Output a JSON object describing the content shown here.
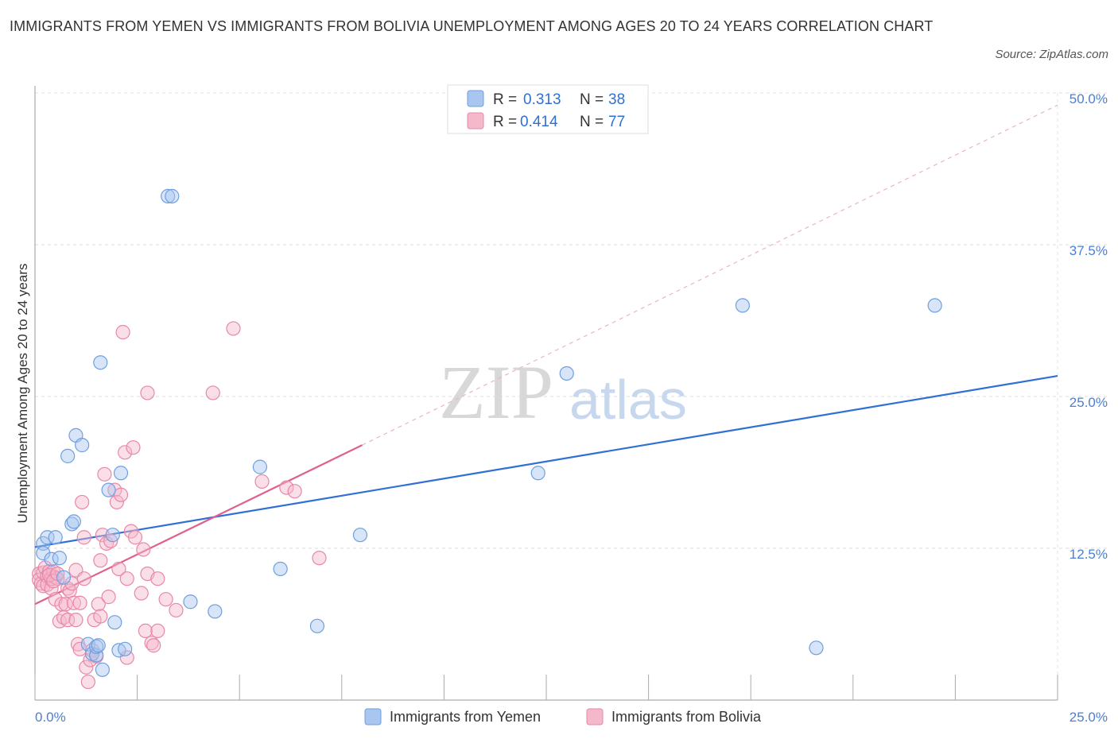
{
  "title": "IMMIGRANTS FROM YEMEN VS IMMIGRANTS FROM BOLIVIA UNEMPLOYMENT AMONG AGES 20 TO 24 YEARS CORRELATION CHART",
  "source": "Source: ZipAtlas.com",
  "watermark": {
    "zip": "ZIP",
    "atlas": "atlas"
  },
  "chart_data": {
    "type": "scatter",
    "title": "IMMIGRANTS FROM YEMEN VS IMMIGRANTS FROM BOLIVIA UNEMPLOYMENT AMONG AGES 20 TO 24 YEARS CORRELATION CHART",
    "xlabel": "",
    "ylabel": "Unemployment Among Ages 20 to 24 years",
    "xlim": [
      0,
      25
    ],
    "ylim": [
      0,
      50
    ],
    "x_tick_labels": [
      "0.0%",
      "25.0%"
    ],
    "y_tick_labels": [
      "12.5%",
      "25.0%",
      "37.5%",
      "50.0%"
    ],
    "y_ticks": [
      12.5,
      25,
      37.5,
      50
    ],
    "grid": true,
    "legend_position": "top-center",
    "legend": [
      {
        "series": "Immigrants from Yemen",
        "r_label": "R =",
        "r_value": "0.313",
        "n_label": "N =",
        "n_value": "38",
        "color": "#a9c6f0",
        "stroke": "#6f9fdf"
      },
      {
        "series": "Immigrants from Bolivia",
        "r_label": "R =",
        "r_value": "0.414",
        "n_label": "N =",
        "n_value": "77",
        "color": "#f5b8cb",
        "stroke": "#e888a7"
      }
    ],
    "series": [
      {
        "name": "Immigrants from Yemen",
        "color": "#a9c6f0",
        "stroke": "#6f9fdf",
        "trend": {
          "x": [
            0,
            25
          ],
          "y": [
            12.6,
            26.7
          ],
          "color": "#2f6fd6",
          "style": "solid"
        },
        "points": [
          [
            0.2,
            12.9
          ],
          [
            0.2,
            12.1
          ],
          [
            0.3,
            13.4
          ],
          [
            0.4,
            11.6
          ],
          [
            0.5,
            13.4
          ],
          [
            0.6,
            11.7
          ],
          [
            0.7,
            10.1
          ],
          [
            0.8,
            20.1
          ],
          [
            0.9,
            14.5
          ],
          [
            0.95,
            14.7
          ],
          [
            1.0,
            21.8
          ],
          [
            1.15,
            21.0
          ],
          [
            1.3,
            4.6
          ],
          [
            1.4,
            3.8
          ],
          [
            1.5,
            3.7
          ],
          [
            1.5,
            4.4
          ],
          [
            1.55,
            4.5
          ],
          [
            1.6,
            27.8
          ],
          [
            1.65,
            2.5
          ],
          [
            1.8,
            17.3
          ],
          [
            1.9,
            13.6
          ],
          [
            1.95,
            6.4
          ],
          [
            2.05,
            4.1
          ],
          [
            2.1,
            18.7
          ],
          [
            2.2,
            4.2
          ],
          [
            3.25,
            41.5
          ],
          [
            3.35,
            41.5
          ],
          [
            3.8,
            8.1
          ],
          [
            4.4,
            7.3
          ],
          [
            5.5,
            19.2
          ],
          [
            6.0,
            10.8
          ],
          [
            6.9,
            6.1
          ],
          [
            7.95,
            13.6
          ],
          [
            12.3,
            18.7
          ],
          [
            13.0,
            26.9
          ],
          [
            17.3,
            32.5
          ],
          [
            19.1,
            4.3
          ],
          [
            22.0,
            32.5
          ]
        ]
      },
      {
        "name": "Immigrants from Bolivia",
        "color": "#f5b8cb",
        "stroke": "#e888a7",
        "trend": {
          "x": [
            0,
            8.0
          ],
          "y": [
            7.9,
            21.0
          ],
          "color": "#e0608d",
          "style": "solid",
          "extend_to": [
            25,
            49.0
          ]
        },
        "points": [
          [
            0.1,
            10.4
          ],
          [
            0.1,
            9.9
          ],
          [
            0.15,
            9.6
          ],
          [
            0.2,
            10.5
          ],
          [
            0.2,
            9.4
          ],
          [
            0.25,
            10.9
          ],
          [
            0.3,
            10.2
          ],
          [
            0.3,
            9.5
          ],
          [
            0.35,
            10.6
          ],
          [
            0.4,
            9.2
          ],
          [
            0.4,
            10.0
          ],
          [
            0.45,
            10.6
          ],
          [
            0.5,
            10.1
          ],
          [
            0.5,
            8.3
          ],
          [
            0.55,
            10.0
          ],
          [
            0.6,
            6.5
          ],
          [
            0.65,
            7.9
          ],
          [
            0.7,
            6.8
          ],
          [
            0.75,
            7.9
          ],
          [
            0.8,
            9.2
          ],
          [
            0.8,
            6.6
          ],
          [
            0.85,
            9.0
          ],
          [
            0.9,
            9.6
          ],
          [
            0.95,
            8.0
          ],
          [
            1.0,
            6.6
          ],
          [
            1.0,
            10.7
          ],
          [
            1.05,
            4.6
          ],
          [
            1.1,
            4.2
          ],
          [
            1.1,
            8.0
          ],
          [
            1.15,
            16.3
          ],
          [
            1.2,
            10.0
          ],
          [
            1.2,
            13.4
          ],
          [
            1.25,
            2.7
          ],
          [
            1.3,
            1.5
          ],
          [
            1.35,
            3.3
          ],
          [
            1.4,
            4.1
          ],
          [
            1.45,
            6.6
          ],
          [
            1.5,
            3.6
          ],
          [
            1.55,
            7.9
          ],
          [
            1.6,
            6.9
          ],
          [
            1.6,
            11.5
          ],
          [
            1.65,
            13.6
          ],
          [
            1.7,
            18.6
          ],
          [
            1.75,
            12.9
          ],
          [
            1.8,
            8.5
          ],
          [
            1.85,
            13.1
          ],
          [
            1.95,
            17.3
          ],
          [
            2.0,
            16.3
          ],
          [
            2.05,
            10.8
          ],
          [
            2.1,
            16.9
          ],
          [
            2.15,
            30.3
          ],
          [
            2.2,
            20.4
          ],
          [
            2.25,
            3.5
          ],
          [
            2.25,
            10.0
          ],
          [
            2.35,
            13.9
          ],
          [
            2.4,
            20.8
          ],
          [
            2.45,
            13.4
          ],
          [
            2.6,
            8.8
          ],
          [
            2.65,
            12.4
          ],
          [
            2.7,
            5.7
          ],
          [
            2.75,
            10.4
          ],
          [
            2.75,
            25.3
          ],
          [
            2.85,
            4.7
          ],
          [
            2.9,
            4.5
          ],
          [
            3.0,
            10.0
          ],
          [
            3.0,
            5.7
          ],
          [
            3.2,
            8.3
          ],
          [
            3.45,
            7.4
          ],
          [
            4.35,
            25.3
          ],
          [
            4.85,
            30.6
          ],
          [
            5.55,
            18.0
          ],
          [
            6.15,
            17.5
          ],
          [
            6.35,
            17.2
          ],
          [
            6.95,
            11.7
          ],
          [
            0.35,
            10.3
          ],
          [
            0.45,
            9.8
          ],
          [
            0.55,
            10.4
          ]
        ]
      }
    ]
  },
  "bottom_legend": [
    {
      "label": "Immigrants from Yemen",
      "color": "#a9c6f0",
      "stroke": "#6f9fdf"
    },
    {
      "label": "Immigrants from Bolivia",
      "color": "#f5b8cb",
      "stroke": "#e888a7"
    }
  ]
}
